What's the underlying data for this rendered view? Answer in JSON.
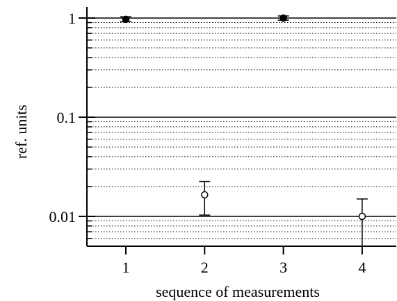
{
  "chart_data": {
    "type": "scatter",
    "title": "",
    "xlabel": "sequence of measurements",
    "ylabel": "ref. units",
    "y_scale": "log",
    "ylim": [
      0.0045,
      1.15
    ],
    "xlim": [
      0.5,
      4.5
    ],
    "x_ticks": [
      1,
      2,
      3,
      4
    ],
    "x_tick_labels": [
      "1",
      "2",
      "3",
      "4"
    ],
    "y_major_ticks": [
      1,
      0.1,
      0.01
    ],
    "y_tick_labels": [
      "1",
      "0.1",
      "0.01"
    ],
    "grid": "major solid, minor dotted (horizontal)",
    "points": [
      {
        "x": 1,
        "y": 0.97,
        "y_low": 0.92,
        "y_high": 1.03,
        "marker": "filled"
      },
      {
        "x": 2,
        "y": 0.0165,
        "y_low": 0.0103,
        "y_high": 0.0225,
        "marker": "open"
      },
      {
        "x": 3,
        "y": 1.0,
        "y_low": 0.95,
        "y_high": 1.05,
        "marker": "filled"
      },
      {
        "x": 4,
        "y": 0.01,
        "y_low": 0.0045,
        "y_high": 0.015,
        "marker": "open"
      }
    ]
  }
}
